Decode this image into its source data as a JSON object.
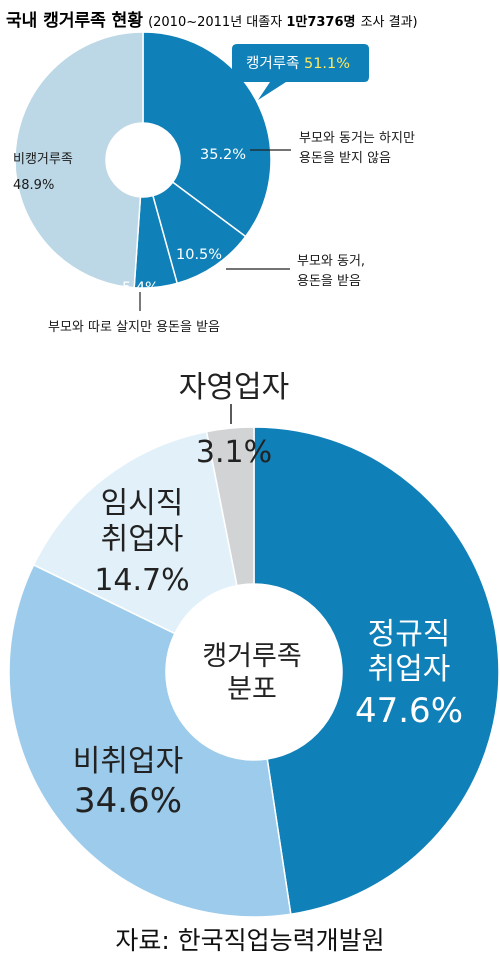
{
  "title": {
    "main": "국내 캥거루족 현황",
    "sub": "(2010~2011년 대졸자 ",
    "sub_bold": "1만7376명",
    "sub_tail": " 조사 결과)"
  },
  "callout": {
    "label": "캥거루족 ",
    "value": "51.1%"
  },
  "chart_data": [
    {
      "type": "pie",
      "title": "국내 캥거루족 현황",
      "slices": [
        {
          "key": "p1",
          "label_lines": [
            "부모와 동거는 하지만",
            "용돈을 받지 않음"
          ],
          "value": 35.2,
          "value_label": "35.2%",
          "color": "#0f80b8"
        },
        {
          "key": "p2",
          "label_lines": [
            "부모와 동거,",
            "용돈을 받음"
          ],
          "value": 10.5,
          "value_label": "10.5%",
          "color": "#0f80b8"
        },
        {
          "key": "p3",
          "label_lines": [
            "부모와 따로 살지만 용돈을 받음"
          ],
          "value": 5.4,
          "value_label": "5.4%",
          "color": "#0f80b8"
        },
        {
          "key": "p4",
          "label_lines": [
            "비캥거루족"
          ],
          "value": 48.9,
          "value_label": "48.9%",
          "color": "#bcd7e5"
        }
      ]
    },
    {
      "type": "pie",
      "center_label_lines": [
        "캥거루족",
        "분포"
      ],
      "slices": [
        {
          "key": "q1",
          "label_lines": [
            "정규직",
            "취업자"
          ],
          "value": 47.6,
          "value_label": "47.6%",
          "color": "#0f80b8"
        },
        {
          "key": "q2",
          "label_lines": [
            "비취업자"
          ],
          "value": 34.6,
          "value_label": "34.6%",
          "color": "#9ccbec"
        },
        {
          "key": "q3",
          "label_lines": [
            "임시직",
            "취업자"
          ],
          "value": 14.7,
          "value_label": "14.7%",
          "color": "#e2f1f9"
        },
        {
          "key": "q4",
          "label_lines": [
            "자영업자"
          ],
          "value": 3.1,
          "value_label": "3.1%",
          "color": "#d2d3d4"
        }
      ]
    }
  ],
  "source": "자료: 한국직업능력개발원"
}
